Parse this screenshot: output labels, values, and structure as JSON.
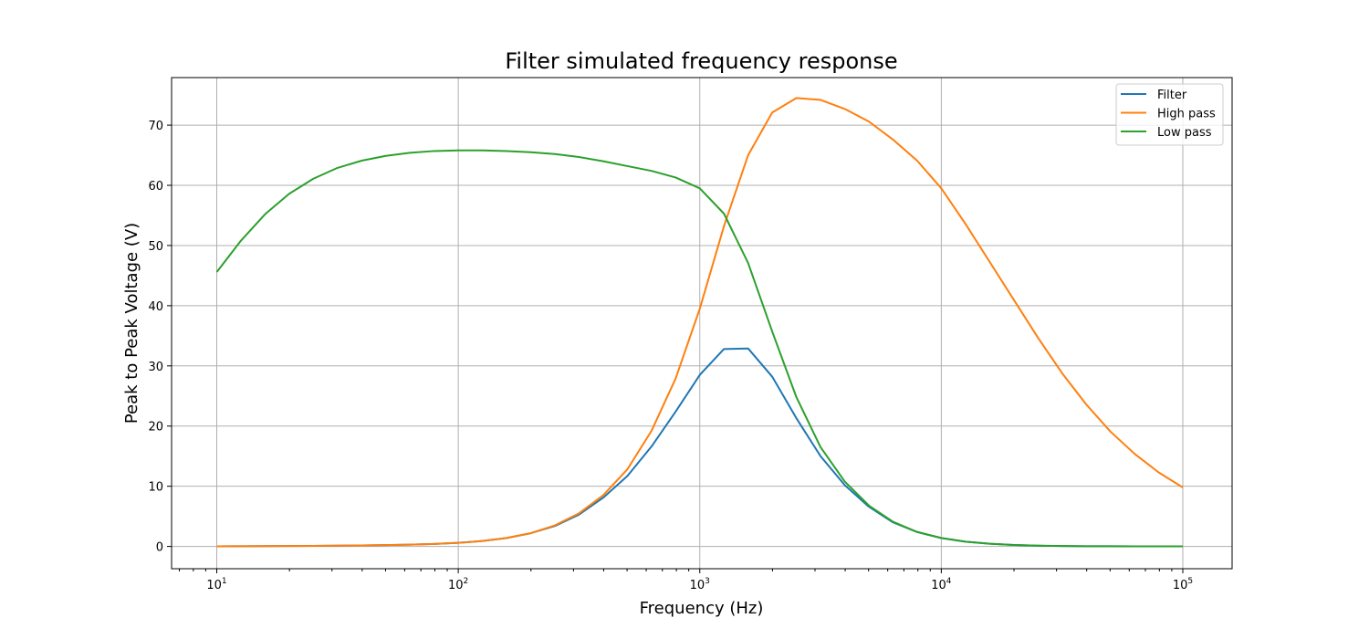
{
  "chart_data": {
    "type": "line",
    "title": "Filter simulated frequency response",
    "xlabel": "Frequency (Hz)",
    "ylabel": "Peak to Peak Voltage (V)",
    "x_scale": "log",
    "xlim": [
      6.5,
      160000
    ],
    "ylim": [
      -3.7,
      77.9
    ],
    "x_ticks": [
      10,
      100,
      1000,
      10000,
      100000
    ],
    "x_tick_labels": [
      {
        "base": "10",
        "exp": "1"
      },
      {
        "base": "10",
        "exp": "2"
      },
      {
        "base": "10",
        "exp": "3"
      },
      {
        "base": "10",
        "exp": "4"
      },
      {
        "base": "10",
        "exp": "5"
      }
    ],
    "y_ticks": [
      0,
      10,
      20,
      30,
      40,
      50,
      60,
      70
    ],
    "y_tick_labels": [
      "0",
      "10",
      "20",
      "30",
      "40",
      "50",
      "60",
      "70"
    ],
    "grid": true,
    "legend_position": "top-right",
    "x": [
      10,
      12.59,
      15.85,
      19.95,
      25.12,
      31.62,
      39.81,
      50.12,
      63.1,
      79.43,
      100,
      125.9,
      158.5,
      199.5,
      251.2,
      316.2,
      398.1,
      501.2,
      631,
      794.3,
      1000,
      1259,
      1585,
      1995,
      2512,
      3162,
      3981,
      5012,
      6310,
      7943,
      10000,
      12589,
      15849,
      19953,
      25119,
      31623,
      39811,
      50119,
      63096,
      79433,
      100000
    ],
    "series": [
      {
        "name": "Filter",
        "color": "#1f77b4",
        "values": [
          0.02,
          0.03,
          0.05,
          0.07,
          0.1,
          0.13,
          0.17,
          0.23,
          0.3,
          0.42,
          0.6,
          0.9,
          1.4,
          2.2,
          3.4,
          5.3,
          8.1,
          11.7,
          16.6,
          22.4,
          28.5,
          32.8,
          32.9,
          28.2,
          21.3,
          15.0,
          10.2,
          6.6,
          4.0,
          2.4,
          1.4,
          0.8,
          0.45,
          0.25,
          0.13,
          0.07,
          0.04,
          0.03,
          0.02,
          0.01,
          0.01
        ]
      },
      {
        "name": "High pass",
        "color": "#ff7f0e",
        "values": [
          0.02,
          0.03,
          0.05,
          0.07,
          0.1,
          0.13,
          0.17,
          0.23,
          0.3,
          0.42,
          0.6,
          0.9,
          1.4,
          2.2,
          3.5,
          5.5,
          8.5,
          12.8,
          19.2,
          27.9,
          39.5,
          53.2,
          65.0,
          72.1,
          74.5,
          74.2,
          72.7,
          70.6,
          67.6,
          64.1,
          59.5,
          53.6,
          47.3,
          41.0,
          34.7,
          28.8,
          23.6,
          19.1,
          15.4,
          12.3,
          9.8
        ]
      },
      {
        "name": "Low pass",
        "color": "#2ca02c",
        "values": [
          45.6,
          50.8,
          55.2,
          58.6,
          61.1,
          62.9,
          64.1,
          64.9,
          65.4,
          65.7,
          65.8,
          65.8,
          65.7,
          65.5,
          65.2,
          64.7,
          64.0,
          63.2,
          62.4,
          61.3,
          59.5,
          55.3,
          47.1,
          35.7,
          24.8,
          16.5,
          10.8,
          6.8,
          4.1,
          2.4,
          1.4,
          0.8,
          0.45,
          0.25,
          0.13,
          0.07,
          0.04,
          0.03,
          0.02,
          0.01,
          0.01
        ]
      }
    ]
  }
}
